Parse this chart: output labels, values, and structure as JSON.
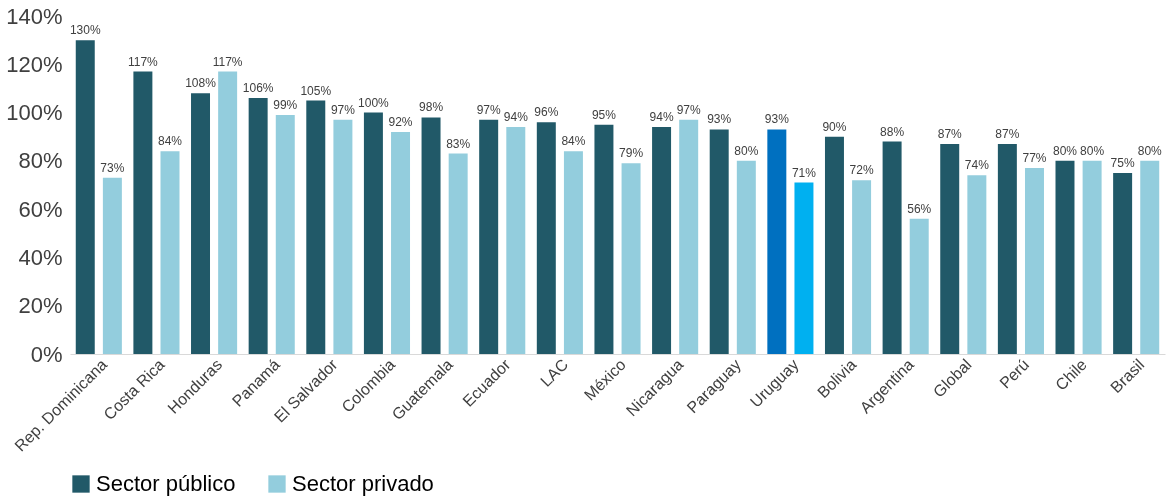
{
  "chart_data": {
    "type": "bar",
    "categories": [
      "Rep. Dominicana",
      "Costa Rica",
      "Honduras",
      "Panamá",
      "El Salvador",
      "Colombia",
      "Guatemala",
      "Ecuador",
      "LAC",
      "México",
      "Nicaragua",
      "Paraguay",
      "Uruguay",
      "Bolivia",
      "Argentina",
      "Global",
      "Perú",
      "Chile",
      "Brasil"
    ],
    "series": [
      {
        "name": "Sector público",
        "color": "#215968",
        "colors": [
          "#215968",
          "#215968",
          "#215968",
          "#215968",
          "#215968",
          "#215968",
          "#215968",
          "#215968",
          "#215968",
          "#215968",
          "#215968",
          "#215968",
          "#0070c0",
          "#215968",
          "#215968",
          "#215968",
          "#215968",
          "#215968",
          "#215968"
        ],
        "values": [
          130,
          117,
          108,
          106,
          105,
          100,
          98,
          97,
          96,
          95,
          94,
          93,
          93,
          90,
          88,
          87,
          87,
          80,
          75
        ],
        "value_labels": [
          "130%",
          "117%",
          "108%",
          "106%",
          "105%",
          "100%",
          "98%",
          "97%",
          "96%",
          "95%",
          "94%",
          "93%",
          "93%",
          "90%",
          "88%",
          "87%",
          "87%",
          "80%",
          "75%"
        ]
      },
      {
        "name": "Sector privado",
        "color": "#93cddd",
        "colors": [
          "#93cddd",
          "#93cddd",
          "#93cddd",
          "#93cddd",
          "#93cddd",
          "#93cddd",
          "#93cddd",
          "#93cddd",
          "#93cddd",
          "#93cddd",
          "#93cddd",
          "#93cddd",
          "#00b0f0",
          "#93cddd",
          "#93cddd",
          "#93cddd",
          "#93cddd",
          "#93cddd",
          "#93cddd"
        ],
        "values": [
          73,
          84,
          117,
          99,
          97,
          92,
          83,
          94,
          84,
          79,
          97,
          80,
          71,
          72,
          56,
          74,
          77,
          80,
          80
        ],
        "value_labels": [
          "73%",
          "84%",
          "117%",
          "99%",
          "97%",
          "92%",
          "83%",
          "94%",
          "84%",
          "79%",
          "97%",
          "80%",
          "71%",
          "72%",
          "56%",
          "74%",
          "77%",
          "80%",
          "80%"
        ]
      }
    ],
    "ylim": [
      0,
      140
    ],
    "yticks": [
      {
        "value": 0,
        "label": "0%"
      },
      {
        "value": 20,
        "label": "20%"
      },
      {
        "value": 40,
        "label": "40%"
      },
      {
        "value": 60,
        "label": "60%"
      },
      {
        "value": 80,
        "label": "80%"
      },
      {
        "value": 100,
        "label": "100%"
      },
      {
        "value": 120,
        "label": "120%"
      },
      {
        "value": 140,
        "label": "140%"
      }
    ],
    "grid": false,
    "legend": "bottom"
  }
}
